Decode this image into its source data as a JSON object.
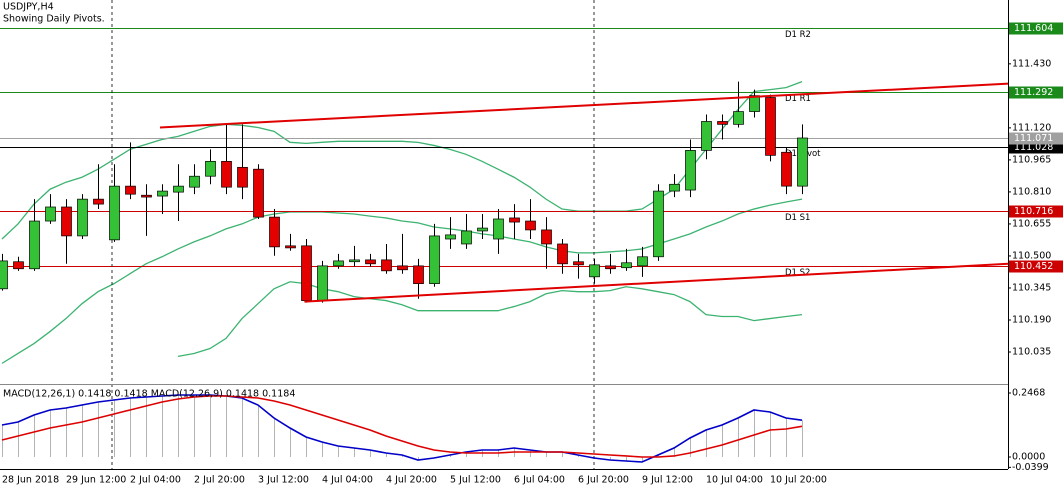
{
  "chart_data": [
    {
      "type": "candlestick",
      "title": "USDJPY,H4",
      "subtitle": "Showing Daily Pivots.",
      "categories": [
        "28 Jun 2018",
        null,
        null,
        null,
        "29 Jun 12:00",
        null,
        null,
        null,
        "2 Jul 04:00",
        null,
        null,
        null,
        "2 Jul 20:00",
        null,
        null,
        null,
        "3 Jul 12:00",
        null,
        null,
        null,
        "4 Jul 04:00",
        null,
        null,
        null,
        "4 Jul 20:00",
        null,
        null,
        null,
        "5 Jul 12:00",
        null,
        null,
        null,
        "6 Jul 04:00",
        null,
        null,
        null,
        "6 Jul 20:00",
        null,
        null,
        null,
        "9 Jul 12:00",
        null,
        null,
        null,
        "10 Jul 04:00",
        null,
        null,
        null,
        "10 Jul 20:00",
        null,
        null
      ],
      "open": [
        110.341,
        110.472,
        110.438,
        110.669,
        110.737,
        110.597,
        110.775,
        110.578,
        110.838,
        110.794,
        110.79,
        110.809,
        110.833,
        110.886,
        110.958,
        110.929,
        110.92,
        110.688,
        110.549,
        110.549,
        110.284,
        110.452,
        110.472,
        110.481,
        110.481,
        110.452,
        110.452,
        110.366,
        110.582,
        110.558,
        110.621,
        110.582,
        110.684,
        110.669,
        110.626,
        110.558,
        110.472,
        110.399,
        110.452,
        110.443,
        110.452,
        110.496,
        110.814,
        110.819,
        111.011,
        111.151,
        111.137,
        111.199,
        111.267,
        111.002,
        110.838
      ],
      "high": [
        110.51,
        110.496,
        110.775,
        110.799,
        110.775,
        110.799,
        110.944,
        110.944,
        111.05,
        110.847,
        110.847,
        110.944,
        110.944,
        111.016,
        111.137,
        111.137,
        110.944,
        110.727,
        110.607,
        110.582,
        110.476,
        110.51,
        110.549,
        110.51,
        110.558,
        110.607,
        110.486,
        110.655,
        110.688,
        110.703,
        110.703,
        110.727,
        110.751,
        110.775,
        110.688,
        110.582,
        110.51,
        110.486,
        110.51,
        110.534,
        110.544,
        110.847,
        110.896,
        111.064,
        111.185,
        111.185,
        111.344,
        111.305,
        111.281,
        111.026,
        111.137
      ],
      "low": [
        110.332,
        110.428,
        110.428,
        110.655,
        110.462,
        110.582,
        110.727,
        110.568,
        110.775,
        110.597,
        110.703,
        110.669,
        110.799,
        110.847,
        110.799,
        110.775,
        110.679,
        110.501,
        110.525,
        110.274,
        110.274,
        110.438,
        110.448,
        110.448,
        110.414,
        110.414,
        110.293,
        110.351,
        110.534,
        110.534,
        110.582,
        110.51,
        110.582,
        110.582,
        110.438,
        110.414,
        110.39,
        110.366,
        110.414,
        110.428,
        110.399,
        110.476,
        110.785,
        110.785,
        110.968,
        111.064,
        111.122,
        111.17,
        110.958,
        110.799,
        110.799
      ],
      "close": [
        110.476,
        110.438,
        110.669,
        110.737,
        110.597,
        110.775,
        110.751,
        110.838,
        110.799,
        110.785,
        110.814,
        110.838,
        110.886,
        110.958,
        110.833,
        110.833,
        110.688,
        110.544,
        110.539,
        110.284,
        110.452,
        110.476,
        110.481,
        110.462,
        110.428,
        110.433,
        110.366,
        110.597,
        110.602,
        110.621,
        110.635,
        110.679,
        110.664,
        110.626,
        110.558,
        110.462,
        110.457,
        110.457,
        110.438,
        110.467,
        110.496,
        110.814,
        110.847,
        111.011,
        111.151,
        111.137,
        111.199,
        111.276,
        110.987,
        110.838,
        111.071
      ],
      "up_color": "#35c135",
      "down_color": "#e50000",
      "wick_color": "#000000",
      "current_price_color": "#a0a0a0",
      "overlays": [
        {
          "color": "#3cb371",
          "values": [
            110.582,
            110.655,
            110.751,
            110.823,
            110.857,
            110.881,
            110.92,
            110.968,
            111.016,
            111.04,
            111.064,
            111.079,
            111.103,
            111.127,
            111.137,
            111.132,
            111.122,
            111.103,
            111.05,
            111.045,
            111.05,
            111.055,
            111.055,
            111.055,
            111.055,
            111.055,
            111.05,
            111.035,
            111.016,
            110.992,
            110.958,
            110.92,
            110.881,
            110.833,
            110.775,
            110.727,
            110.717,
            110.717,
            110.717,
            110.717,
            110.727,
            110.775,
            110.823,
            110.92,
            111.016,
            111.113,
            111.209,
            111.296,
            111.305,
            111.315,
            111.344
          ]
        },
        {
          "color": "#3cb371",
          "values": [
            109.98,
            110.028,
            110.076,
            110.134,
            110.197,
            110.269,
            110.327,
            110.366,
            110.414,
            110.462,
            110.496,
            110.534,
            110.568,
            110.597,
            110.631,
            110.655,
            110.688,
            110.703,
            110.713,
            110.713,
            110.713,
            110.708,
            110.703,
            110.693,
            110.684,
            110.669,
            110.66,
            110.64,
            110.631,
            110.621,
            110.607,
            110.597,
            110.582,
            110.568,
            110.544,
            110.525,
            110.515,
            110.515,
            110.52,
            110.525,
            110.534,
            110.558,
            110.582,
            110.607,
            110.64,
            110.669,
            110.703,
            110.727,
            110.746,
            110.761,
            110.775
          ]
        },
        {
          "color": "#3cb371",
          "values": [
            null,
            null,
            null,
            null,
            null,
            null,
            null,
            null,
            null,
            null,
            null,
            110.014,
            110.028,
            110.052,
            110.101,
            110.197,
            110.269,
            110.341,
            110.375,
            110.366,
            110.341,
            110.327,
            110.303,
            110.293,
            110.284,
            110.264,
            110.235,
            110.235,
            110.235,
            110.235,
            110.235,
            110.235,
            110.255,
            110.279,
            110.317,
            110.332,
            110.327,
            110.327,
            110.332,
            110.351,
            110.341,
            110.327,
            110.313,
            110.279,
            110.216,
            110.207,
            110.207,
            110.187,
            110.197,
            110.207,
            110.216
          ]
        }
      ],
      "levels": [
        {
          "label": "D1 R2",
          "value": 111.604,
          "color": "#1a8a1a"
        },
        {
          "label": "D1 R1",
          "value": 111.292,
          "color": "#1a8a1a"
        },
        {
          "label": "D1 Pivot",
          "value": 111.028,
          "color": "#000000"
        },
        {
          "label": "D1 S1",
          "value": 110.716,
          "color": "#cc0000"
        },
        {
          "label": "D1 S2",
          "value": 110.452,
          "color": "#cc0000"
        }
      ],
      "trendlines": [
        {
          "x": [
            9.875,
            62.9
          ],
          "values": [
            111.122,
            111.334
          ],
          "color": "#e00000"
        },
        {
          "x": [
            18.9,
            62.9
          ],
          "values": [
            110.279,
            110.462
          ],
          "color": "#e00000"
        }
      ],
      "ylim": [
        109.885,
        111.739
      ],
      "yticks": [
        {
          "value": 111.43,
          "label": "111.430"
        },
        {
          "value": 111.12,
          "label": "111.120"
        },
        110.965,
        {
          "value": 110.81,
          "label": "110.810"
        },
        110.655,
        {
          "value": 110.5,
          "label": "110.500"
        },
        110.345,
        {
          "value": 110.19,
          "label": "110.190"
        },
        110.035
      ]
    },
    {
      "type": "macd",
      "title": "MACD(12,26,1) 0.1418 0.1418 MACD(12,26,9) 0.1418 0.1184",
      "histogram_color": "#b4b4b4",
      "series": [
        {
          "color": "#0000c8",
          "values": [
            0.1234,
            0.135,
            0.162,
            0.1813,
            0.189,
            0.2005,
            0.2121,
            0.2198,
            0.2275,
            0.2314,
            0.2352,
            0.2391,
            0.2391,
            0.2391,
            0.2352,
            0.2275,
            0.2005,
            0.1504,
            0.1118,
            0.0771,
            0.0578,
            0.0424,
            0.0347,
            0.027,
            0.0154,
            0.0077,
            -0.0116,
            -0.0039,
            0.0077,
            0.0193,
            0.027,
            0.027,
            0.0347,
            0.027,
            0.0193,
            0.0193,
            0.0077,
            -0.0039,
            -0.0116,
            -0.0154,
            -0.0193,
            0.0077,
            0.0347,
            0.0733,
            0.1041,
            0.1234,
            0.1504,
            0.1813,
            0.1735,
            0.1504,
            0.1418
          ]
        },
        {
          "color": "#dd0000",
          "values": [
            0.0656,
            0.081,
            0.0964,
            0.1118,
            0.1234,
            0.135,
            0.1504,
            0.1658,
            0.1813,
            0.1967,
            0.2121,
            0.2237,
            0.2314,
            0.2352,
            0.2352,
            0.2314,
            0.2275,
            0.216,
            0.2005,
            0.1813,
            0.162,
            0.1427,
            0.1234,
            0.1041,
            0.081,
            0.0617,
            0.0424,
            0.027,
            0.0193,
            0.0154,
            0.0154,
            0.0154,
            0.0193,
            0.0193,
            0.0193,
            0.0193,
            0.0154,
            0.0116,
            0.0077,
            0.0039,
            0,
            0,
            0.0039,
            0.0154,
            0.0309,
            0.0463,
            0.0656,
            0.0848,
            0.1041,
            0.108,
            0.1184
          ]
        }
      ],
      "ylim": [
        -0.0463,
        0.2738
      ],
      "yticks": [
        0.2468,
        {
          "value": 0,
          "label": "0.0000"
        },
        -0.0399
      ]
    }
  ]
}
